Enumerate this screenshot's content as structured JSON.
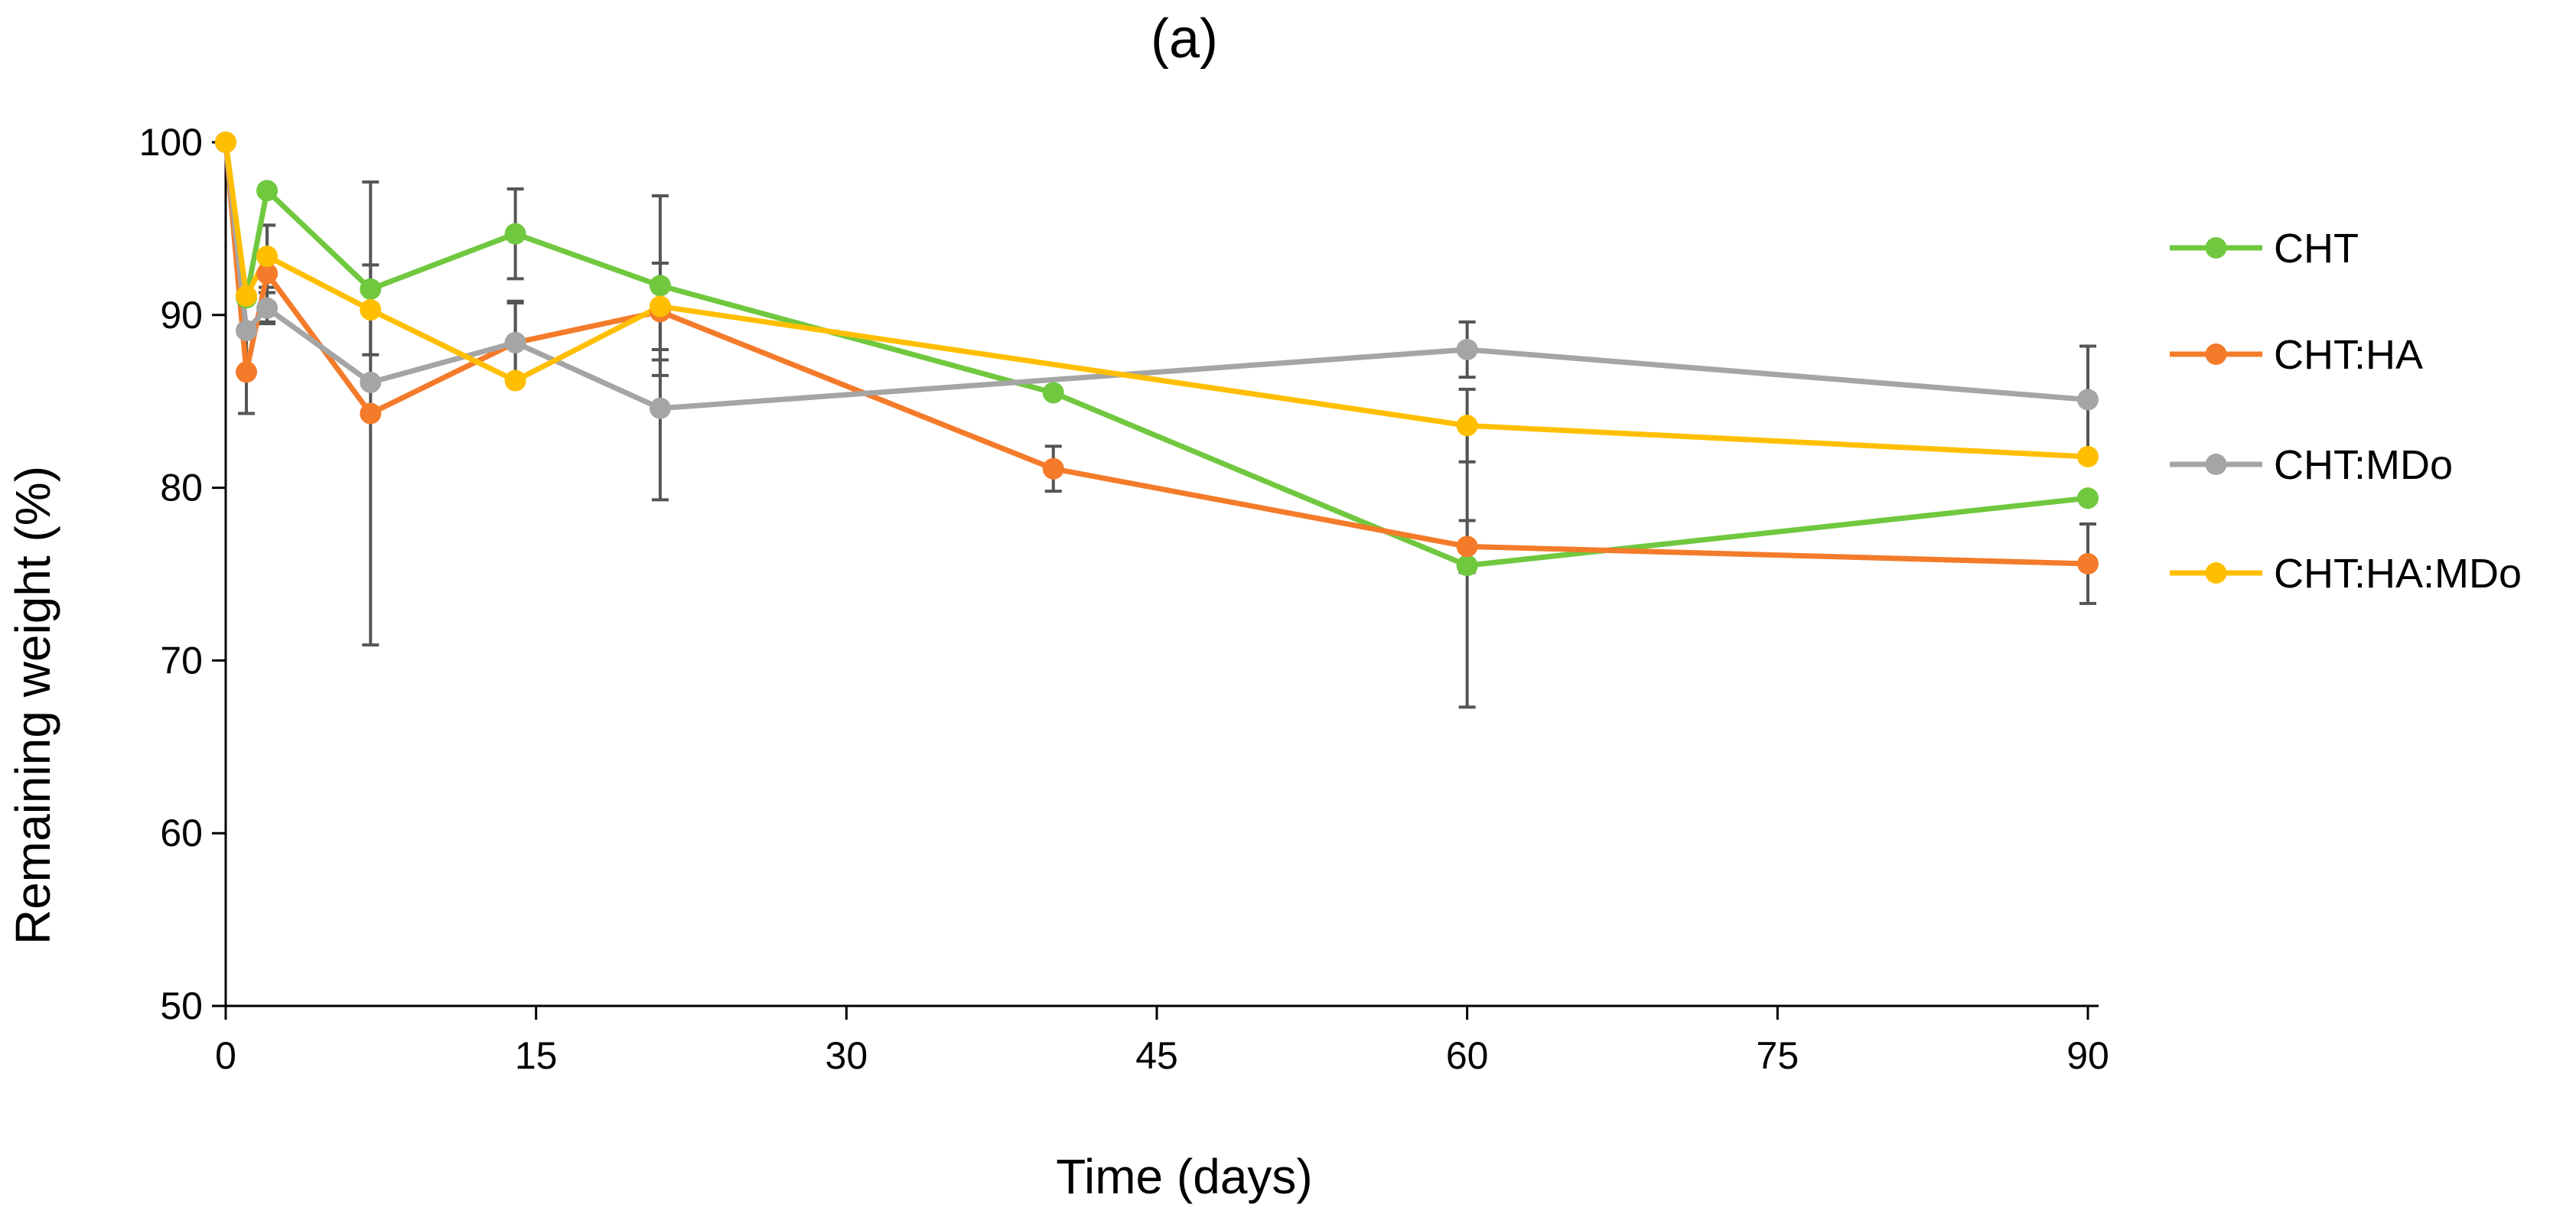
{
  "chart_data": {
    "type": "line",
    "title": "(a)",
    "xlabel": "Time (days)",
    "ylabel": "Remaining weight (%)",
    "xlim": [
      0,
      90
    ],
    "ylim": [
      50,
      100
    ],
    "x_ticks": [
      "0",
      "15",
      "30",
      "45",
      "60",
      "75",
      "90"
    ],
    "y_ticks": [
      "50",
      "60",
      "70",
      "80",
      "90",
      "100"
    ],
    "grid": false,
    "legend_position": "right",
    "series": [
      {
        "name": "CHT",
        "color": "#70c83f",
        "x": [
          0,
          1,
          2,
          7,
          14,
          21,
          40,
          60,
          90
        ],
        "y": [
          100,
          91,
          97.2,
          91.5,
          94.7,
          91.7,
          85.5,
          75.5,
          79.4
        ],
        "err": [
          0,
          0,
          0,
          0,
          2.6,
          5.2,
          0,
          8.2,
          0
        ]
      },
      {
        "name": "CHT:HA",
        "color": "#f47b2a",
        "x": [
          0,
          1,
          2,
          7,
          14,
          21,
          40,
          60,
          90
        ],
        "y": [
          100,
          86.7,
          92.4,
          84.3,
          88.4,
          90.2,
          81.1,
          76.6,
          75.6
        ],
        "err": [
          0,
          2.4,
          2.8,
          13.4,
          2.4,
          2.8,
          1.3,
          1.5,
          2.3
        ]
      },
      {
        "name": "CHT:MDo",
        "color": "#a5a5a5",
        "x": [
          0,
          1,
          2,
          7,
          14,
          21,
          60,
          90
        ],
        "y": [
          100,
          89.1,
          90.4,
          86.1,
          88.4,
          84.6,
          88,
          85.1
        ],
        "err": [
          0,
          0,
          0.9,
          0,
          2.3,
          5.3,
          1.6,
          3.1
        ]
      },
      {
        "name": "CHT:HA:MDo",
        "color": "#ffbf00",
        "x": [
          0,
          1,
          2,
          7,
          14,
          21,
          60,
          90
        ],
        "y": [
          100,
          91.1,
          93.4,
          90.3,
          86.2,
          90.5,
          83.6,
          81.8
        ],
        "err": [
          0,
          0,
          1.8,
          2.6,
          0,
          2.5,
          2.1,
          0
        ]
      }
    ]
  }
}
